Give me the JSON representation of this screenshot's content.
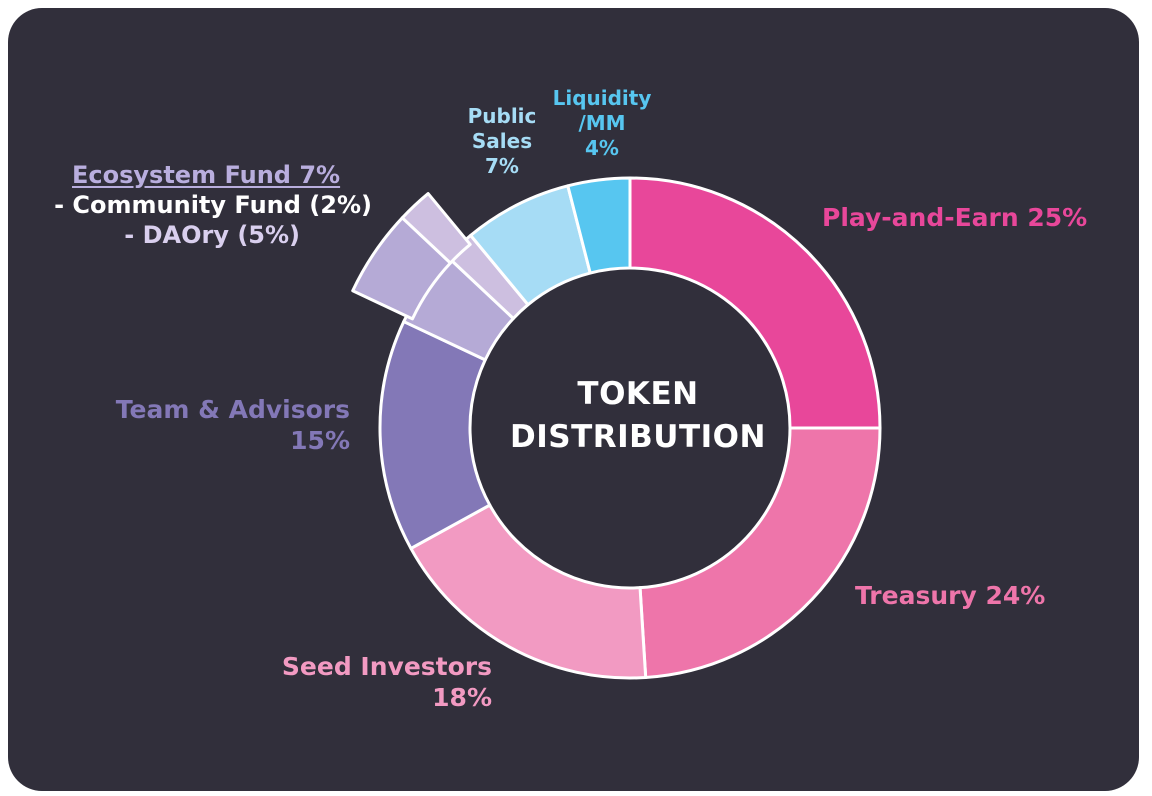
{
  "chart_data": {
    "type": "donut",
    "title": [
      "TOKEN",
      "DISTRIBUTION"
    ],
    "slices": [
      {
        "label": "Play-and-Earn",
        "value": 25,
        "color": "#e8479a"
      },
      {
        "label": "Treasury",
        "value": 24,
        "color": "#ee75aa"
      },
      {
        "label": "Seed Investors",
        "value": 18,
        "color": "#f29ac2"
      },
      {
        "label": "Team & Advisors",
        "value": 15,
        "color": "#8378b7"
      },
      {
        "label": "DAOry",
        "value": 5,
        "color": "#b5aad6",
        "group": "Ecosystem Fund"
      },
      {
        "label": "Community Fund",
        "value": 2,
        "color": "#cdbfe0",
        "group": "Ecosystem Fund"
      },
      {
        "label": "Public Sales",
        "value": 7,
        "color": "#a6dcf5"
      },
      {
        "label": "Liquidity /MM",
        "value": 4,
        "color": "#57c6f0"
      }
    ],
    "exploded_group": "Ecosystem Fund"
  },
  "labels": {
    "play_and_earn": "Play-and-Earn 25%",
    "treasury": "Treasury 24%",
    "seed_investors": [
      "Seed Investors",
      "18%"
    ],
    "team_advisors": [
      "Team & Advisors",
      "15%"
    ],
    "ecosystem": [
      "Ecosystem Fund 7%",
      "- Community Fund (2%)",
      "- DAOry (5%)"
    ],
    "public_sales": [
      "Public",
      "Sales",
      "7%"
    ],
    "liquidity": [
      "Liquidity",
      "/MM",
      "4%"
    ]
  },
  "colors": {
    "background": "#312f3b",
    "play_and_earn_text": "#e8479a",
    "treasury_text": "#ee75aa",
    "seed_text": "#f29ac2",
    "team_text": "#8378b7",
    "ecosystem_head_text": "#b9aede",
    "ecosystem_sub_text": "#ffffff",
    "ecosystem_daory_text": "#d9cfee",
    "public_text": "#a6dcf5",
    "liquidity_text": "#57c6f0"
  }
}
